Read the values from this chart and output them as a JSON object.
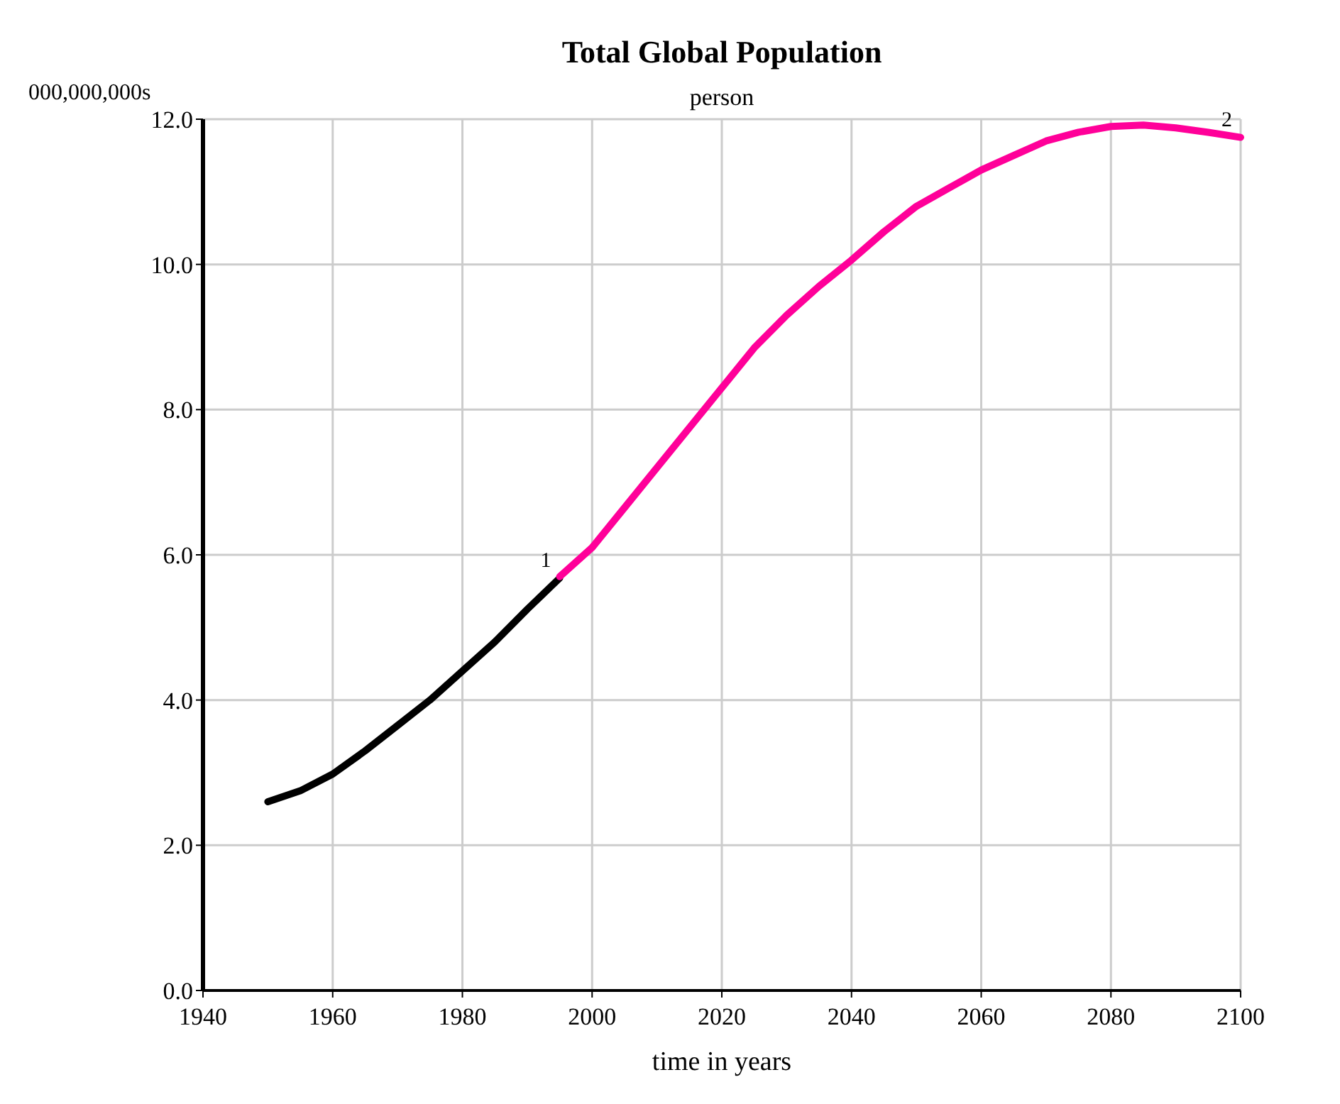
{
  "chart_data": {
    "type": "line",
    "title": "Total Global Population",
    "subtitle": "person",
    "xlabel": "time in years",
    "ylabel": "000,000,000s",
    "xlim": [
      1940,
      2100
    ],
    "xticks": [
      1940,
      1960,
      1980,
      2000,
      2020,
      2040,
      2060,
      2080,
      2100
    ],
    "ylim": [
      0,
      12
    ],
    "yticks": [
      {
        "value": 0,
        "label": "0.0"
      },
      {
        "value": 2,
        "label": "2.0"
      },
      {
        "value": 4,
        "label": "4.0"
      },
      {
        "value": 6,
        "label": "6.0"
      },
      {
        "value": 8,
        "label": "8.0"
      },
      {
        "value": 10,
        "label": "10.0"
      },
      {
        "value": 12,
        "label": "12.0"
      }
    ],
    "grid": true,
    "marker": "none",
    "line_style": "solid",
    "series": [
      {
        "name": "1",
        "color": "#000000",
        "x": [
          1950,
          1955,
          1960,
          1965,
          1970,
          1975,
          1980,
          1985,
          1990,
          1995
        ],
        "values": [
          2.6,
          2.75,
          2.98,
          3.3,
          3.65,
          4.0,
          4.4,
          4.8,
          5.25,
          5.68
        ]
      },
      {
        "name": "2",
        "color": "#ff0099",
        "x": [
          1995,
          2000,
          2005,
          2010,
          2015,
          2020,
          2025,
          2030,
          2035,
          2040,
          2045,
          2050,
          2055,
          2060,
          2065,
          2070,
          2075,
          2080,
          2085,
          2090,
          2095,
          2100
        ],
        "values": [
          5.7,
          6.1,
          6.65,
          7.2,
          7.75,
          8.3,
          8.85,
          9.3,
          9.7,
          10.06,
          10.45,
          10.8,
          11.05,
          11.3,
          11.5,
          11.7,
          11.82,
          11.9,
          11.92,
          11.88,
          11.82,
          11.75
        ]
      }
    ]
  }
}
